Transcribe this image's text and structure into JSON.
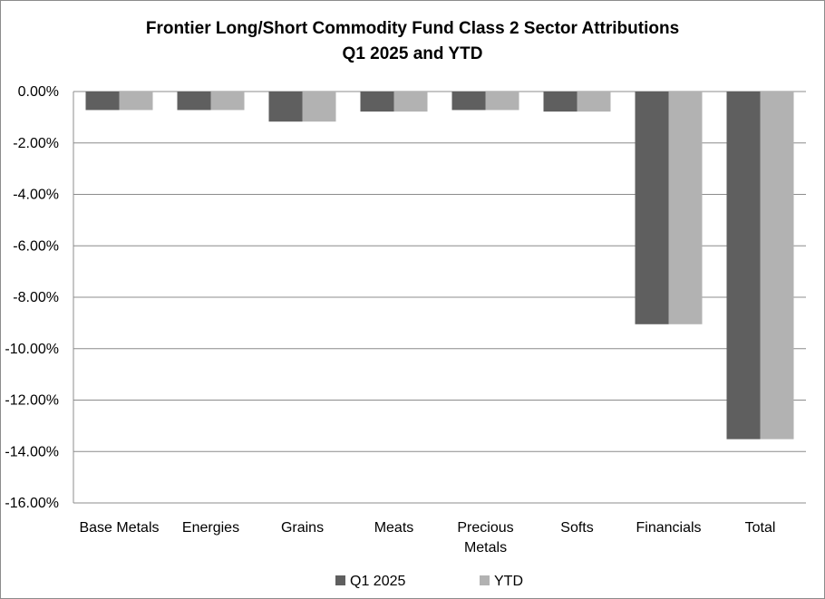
{
  "chart_data": {
    "type": "bar",
    "title": [
      "Frontier Long/Short Commodity Fund Class 2 Sector Attributions",
      "Q1 2025 and YTD"
    ],
    "categories": [
      [
        "Base Metals"
      ],
      [
        "Energies"
      ],
      [
        "Grains"
      ],
      [
        "Meats"
      ],
      [
        "Precious",
        "Metals"
      ],
      [
        "Softs"
      ],
      [
        "Financials"
      ],
      [
        "Total"
      ]
    ],
    "series": [
      {
        "name": "Q1 2025",
        "color": "#5f5f5f",
        "values": [
          -0.72,
          -0.72,
          -1.17,
          -0.78,
          -0.72,
          -0.78,
          -9.05,
          -13.52
        ]
      },
      {
        "name": "YTD",
        "color": "#b2b2b2",
        "values": [
          -0.72,
          -0.72,
          -1.17,
          -0.78,
          -0.72,
          -0.78,
          -9.05,
          -13.52
        ]
      }
    ],
    "yticks": [
      "0.00%",
      "-2.00%",
      "-4.00%",
      "-6.00%",
      "-8.00%",
      "-10.00%",
      "-12.00%",
      "-14.00%",
      "-16.00%"
    ],
    "ylim": [
      -16,
      0
    ],
    "grid": true,
    "legend": "bottom-center",
    "xlabel": "",
    "ylabel": ""
  }
}
